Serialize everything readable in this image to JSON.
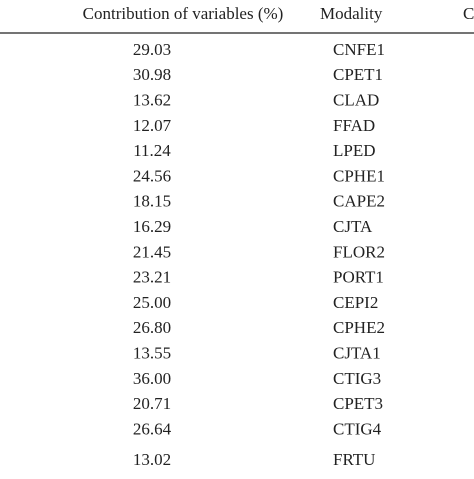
{
  "table": {
    "header": [
      "Contribution of variables (%)",
      "Modality",
      "C"
    ],
    "rows": [
      [
        "29.03",
        "CNFE1"
      ],
      [
        "30.98",
        "CPET1"
      ],
      [
        "13.62",
        "CLAD"
      ],
      [
        "12.07",
        "FFAD"
      ],
      [
        "11.24",
        "LPED"
      ],
      [
        "24.56",
        "CPHE1"
      ],
      [
        "18.15",
        "CAPE2"
      ],
      [
        "16.29",
        "CJTA"
      ],
      [
        "21.45",
        "FLOR2"
      ],
      [
        "23.21",
        "PORT1"
      ],
      [
        "25.00",
        "CEPI2"
      ],
      [
        "26.80",
        "CPHE2"
      ],
      [
        "13.55",
        "CJTA1"
      ],
      [
        "36.00",
        "CTIG3"
      ],
      [
        "20.71",
        "CPET3"
      ],
      [
        "26.64",
        "CTIG4"
      ],
      [
        "13.02",
        "FRTU"
      ]
    ]
  }
}
